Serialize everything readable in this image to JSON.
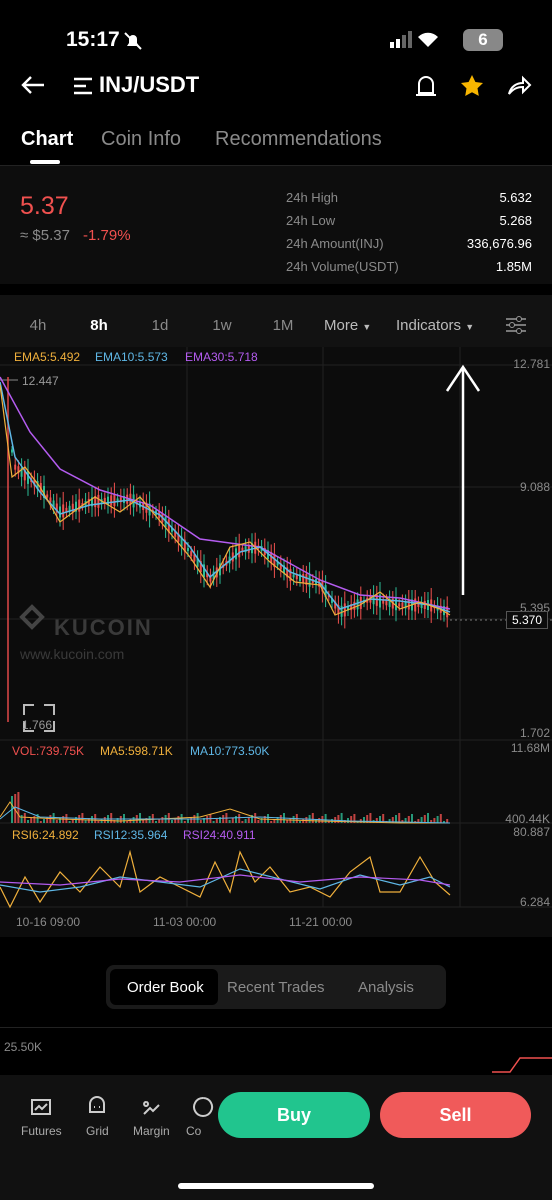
{
  "status_bar": {
    "time": "15:17",
    "battery": "6"
  },
  "header": {
    "pair": "INJ/USDT"
  },
  "tabs": [
    "Chart",
    "Coin Info",
    "Recommendations"
  ],
  "price": {
    "last": "5.37",
    "fiat": "≈ $5.37",
    "change": "-1.79%"
  },
  "stats": [
    {
      "label": "24h High",
      "value": "5.632"
    },
    {
      "label": "24h Low",
      "value": "5.268"
    },
    {
      "label": "24h Amount(INJ)",
      "value": "336,676.96"
    },
    {
      "label": "24h Volume(USDT)",
      "value": "1.85M"
    }
  ],
  "intervals": [
    "4h",
    "8h",
    "1d",
    "1w",
    "1M"
  ],
  "more": "More",
  "indicators": "Indicators",
  "main_chart": {
    "legend": [
      "EMA5:5.492",
      "EMA10:5.573",
      "EMA30:5.718"
    ],
    "axis": [
      "12.781",
      "9.088",
      "5.395",
      "1.702"
    ],
    "last_price": "5.370",
    "high_marker": "12.447",
    "low_marker": "1.766",
    "watermark": "KUCOIN",
    "watermark_url": "www.kucoin.com"
  },
  "volume": {
    "legend": [
      "VOL:739.75K",
      "MA5:598.71K",
      "MA10:773.50K"
    ],
    "axis": [
      "11.68M",
      "400.44K"
    ]
  },
  "rsi": {
    "legend": [
      "RSI6:24.892",
      "RSI12:35.964",
      "RSI24:40.911"
    ],
    "axis": [
      "80.887",
      "6.284"
    ]
  },
  "dates": [
    "10-16 09:00",
    "11-03 00:00",
    "11-21 00:00"
  ],
  "book_tabs": [
    "Order Book",
    "Recent Trades",
    "Analysis"
  ],
  "depth_label": "25.50K",
  "nav": [
    "Futures",
    "Grid",
    "Margin",
    "Co"
  ],
  "buy": "Buy",
  "sell": "Sell"
}
